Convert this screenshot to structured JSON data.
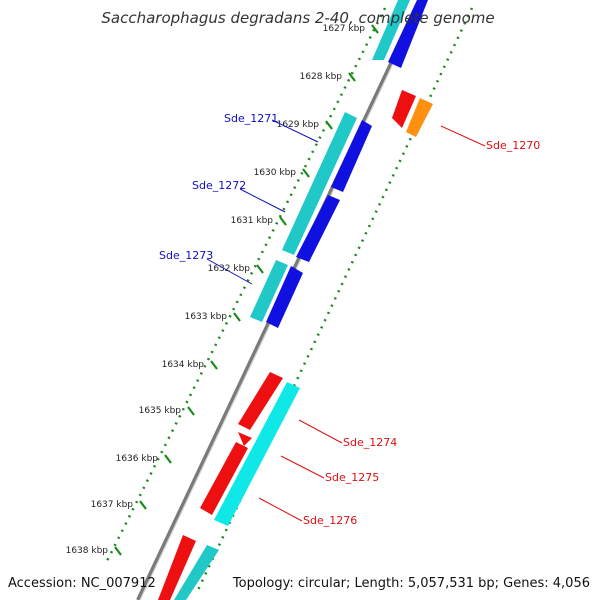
{
  "title": "Saccharophagus degradans 2-40, complete genome",
  "footer": {
    "accession": "Accession: NC_007912",
    "info": "Topology: circular; Length: 5,057,531 bp; Genes: 4,056"
  },
  "colors": {
    "forward_cds": "#1010e0",
    "forward_gene": "#20c8c8",
    "reverse_cds": "#ee1010",
    "reverse_gene": "#10e8e8",
    "backbone": "#888888",
    "tick": "#1a8a1a",
    "label_forward": "#1010c0",
    "label_reverse": "#dd1010",
    "orange_feature": "#ff9010"
  },
  "ticks": [
    {
      "label": "1627 kbp"
    },
    {
      "label": "1628 kbp"
    },
    {
      "label": "1629 kbp"
    },
    {
      "label": "1630 kbp"
    },
    {
      "label": "1631 kbp"
    },
    {
      "label": "1632 kbp"
    },
    {
      "label": "1633 kbp"
    },
    {
      "label": "1634 kbp"
    },
    {
      "label": "1635 kbp"
    },
    {
      "label": "1636 kbp"
    },
    {
      "label": "1637 kbp"
    },
    {
      "label": "1638 kbp"
    }
  ],
  "gene_labels": [
    {
      "text": "Sde_1271",
      "strand": "forward"
    },
    {
      "text": "Sde_1272",
      "strand": "forward"
    },
    {
      "text": "Sde_1273",
      "strand": "forward"
    },
    {
      "text": "Sde_1270",
      "strand": "reverse"
    },
    {
      "text": "Sde_1274",
      "strand": "reverse"
    },
    {
      "text": "Sde_1275",
      "strand": "reverse"
    },
    {
      "text": "Sde_1276",
      "strand": "reverse"
    }
  ]
}
